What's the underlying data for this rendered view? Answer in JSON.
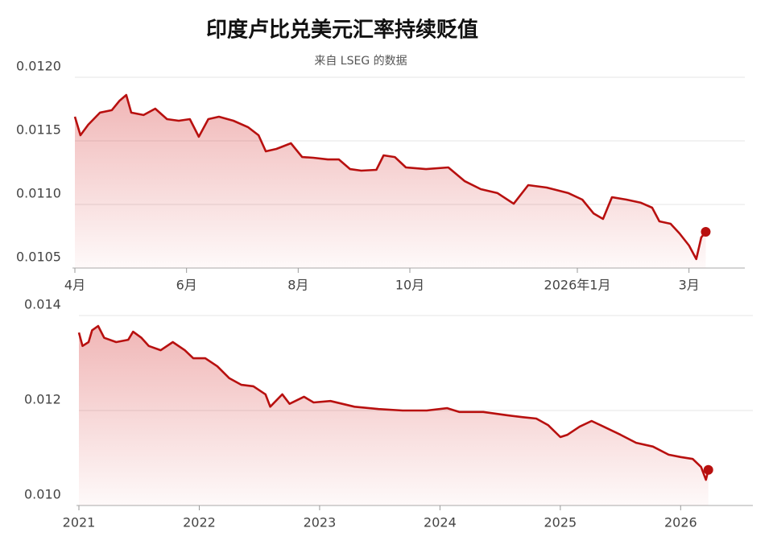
{
  "header": {
    "title": "印度卢比兑美元汇率持续贬值",
    "subtitle": "来自 LSEG 的数据"
  },
  "chart_data": [
    {
      "type": "area",
      "color": "#b8100f",
      "x": [
        0,
        0.1,
        0.24,
        0.45,
        0.66,
        0.8,
        0.92,
        1.01,
        1.23,
        1.44,
        1.65,
        1.86,
        2.06,
        2.22,
        2.39,
        2.58,
        2.84,
        3.1,
        3.29,
        3.42,
        3.61,
        3.87,
        4.07,
        4.27,
        4.53,
        4.73,
        4.93,
        5.13,
        5.4,
        5.53,
        5.73,
        5.93,
        6.29,
        6.69,
        6.98,
        7.27,
        7.57,
        7.86,
        8.12,
        8.45,
        8.84,
        9.09,
        9.29,
        9.46,
        9.62,
        9.88,
        10.14,
        10.34,
        10.47,
        10.67,
        10.83,
        11,
        11.13,
        11.22,
        11.3
      ],
      "values": [
        0.01169,
        0.011544,
        0.011627,
        0.011722,
        0.011741,
        0.011816,
        0.011861,
        0.011722,
        0.011703,
        0.011753,
        0.011671,
        0.011658,
        0.011671,
        0.011532,
        0.011671,
        0.01169,
        0.011658,
        0.011608,
        0.011544,
        0.011418,
        0.011437,
        0.011481,
        0.011373,
        0.011367,
        0.011354,
        0.011354,
        0.011278,
        0.011266,
        0.011272,
        0.011386,
        0.011373,
        0.011291,
        0.011278,
        0.011291,
        0.011184,
        0.01112,
        0.011089,
        0.011006,
        0.011152,
        0.011133,
        0.011089,
        0.011038,
        0.01093,
        0.010886,
        0.011057,
        0.011038,
        0.011013,
        0.010975,
        0.010867,
        0.010848,
        0.010772,
        0.010677,
        0.01057,
        0.010741,
        0.010785
      ],
      "xlim": [
        0,
        12
      ],
      "xticks": [
        {
          "value": 0,
          "label": "4月"
        },
        {
          "value": 2,
          "label": "6月"
        },
        {
          "value": 4,
          "label": "8月"
        },
        {
          "value": 6,
          "label": "10月"
        },
        {
          "value": 9,
          "label": "2026年1月"
        },
        {
          "value": 11,
          "label": "3月"
        }
      ],
      "ylim": [
        0.0105,
        0.012
      ],
      "yticks": [
        0.0105,
        {
          "value": 0.011,
          "label": "0.0110"
        },
        0.0115,
        {
          "value": 0.012,
          "label": "0.0120"
        }
      ],
      "grid": true
    },
    {
      "type": "area",
      "color": "#b8100f",
      "x": [
        2021,
        2021.03,
        2021.08,
        2021.11,
        2021.16,
        2021.21,
        2021.31,
        2021.41,
        2021.45,
        2021.52,
        2021.58,
        2021.68,
        2021.78,
        2021.88,
        2021.95,
        2022.05,
        2022.15,
        2022.25,
        2022.35,
        2022.45,
        2022.55,
        2022.59,
        2022.69,
        2022.75,
        2022.87,
        2022.95,
        2023.09,
        2023.29,
        2023.49,
        2023.69,
        2023.89,
        2024.06,
        2024.16,
        2024.36,
        2024.56,
        2024.69,
        2024.8,
        2024.9,
        2025,
        2025.06,
        2025.16,
        2025.26,
        2025.36,
        2025.5,
        2025.63,
        2025.77,
        2025.9,
        2026,
        2026.1,
        2026.17,
        2026.21,
        2026.23
      ],
      "values": [
        0.01364,
        0.01336,
        0.01344,
        0.01369,
        0.01378,
        0.01353,
        0.01344,
        0.01349,
        0.01366,
        0.01353,
        0.01336,
        0.01327,
        0.01344,
        0.01327,
        0.0131,
        0.0131,
        0.01293,
        0.01268,
        0.01254,
        0.01251,
        0.01234,
        0.01208,
        0.01234,
        0.01214,
        0.01229,
        0.01217,
        0.0122,
        0.01208,
        0.01203,
        0.012,
        0.012,
        0.01205,
        0.01197,
        0.01197,
        0.0119,
        0.01186,
        0.01183,
        0.01169,
        0.01144,
        0.01149,
        0.01166,
        0.01178,
        0.01166,
        0.01149,
        0.01132,
        0.01124,
        0.01107,
        0.01102,
        0.01098,
        0.01081,
        0.01054,
        0.01075
      ],
      "xlim": [
        2021,
        2026.6
      ],
      "xticks": [
        2021,
        2022,
        2023,
        2024,
        2025,
        2026
      ],
      "ylim": [
        0.01,
        0.014
      ],
      "yticks": [
        {
          "value": 0.01,
          "label": "0.010"
        },
        0.012,
        0.014
      ],
      "grid": true
    }
  ]
}
